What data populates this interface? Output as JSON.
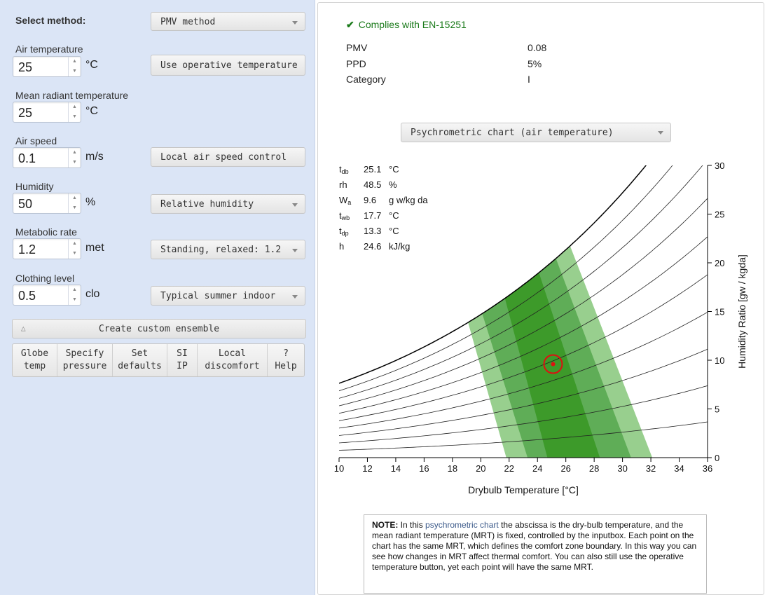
{
  "left": {
    "method_label": "Select method:",
    "method_value": "PMV method",
    "air_temp": {
      "label": "Air temperature",
      "value": "25",
      "unit": "°C",
      "button": "Use operative temperature"
    },
    "mrt": {
      "label": "Mean radiant temperature",
      "value": "25",
      "unit": "°C"
    },
    "air_speed": {
      "label": "Air speed",
      "value": "0.1",
      "unit": "m/s",
      "button": "Local air speed control"
    },
    "humidity": {
      "label": "Humidity",
      "value": "50",
      "unit": "%",
      "select": "Relative humidity"
    },
    "met": {
      "label": "Metabolic rate",
      "value": "1.2",
      "unit": "met",
      "select": "Standing, relaxed: 1.2"
    },
    "clo": {
      "label": "Clothing level",
      "value": "0.5",
      "unit": "clo",
      "select": "Typical summer indoor"
    },
    "custom_ensemble": "Create custom ensemble",
    "tools": [
      {
        "l1": "Globe",
        "l2": "temp"
      },
      {
        "l1": "Specify",
        "l2": "pressure"
      },
      {
        "l1": "Set",
        "l2": "defaults"
      },
      {
        "l1": "SI",
        "l2": "IP"
      },
      {
        "l1": "Local",
        "l2": "discomfort"
      },
      {
        "l1": "?",
        "l2": "Help"
      }
    ]
  },
  "results": {
    "complies": "Complies with EN-15251",
    "rows": [
      {
        "label": "PMV",
        "value": "0.08"
      },
      {
        "label": "PPD",
        "value": "5%"
      },
      {
        "label": "Category",
        "value": "I"
      }
    ]
  },
  "chart_select": "Psychrometric chart (air temperature)",
  "readout": [
    {
      "sym": "t",
      "sub": "db",
      "value": "25.1",
      "unit": "°C"
    },
    {
      "sym": "rh",
      "sub": "",
      "value": "48.5",
      "unit": "%"
    },
    {
      "sym": "W",
      "sub": "a",
      "value": "9.6",
      "unit": "g w/kg da"
    },
    {
      "sym": "t",
      "sub": "wb",
      "value": "17.7",
      "unit": "°C"
    },
    {
      "sym": "t",
      "sub": "dp",
      "value": "13.3",
      "unit": "°C"
    },
    {
      "sym": "h",
      "sub": "",
      "value": "24.6",
      "unit": "kJ/kg"
    }
  ],
  "chart_data": {
    "type": "scatter",
    "xlabel": "Drybulb Temperature [°C]",
    "ylabel": "Humidity Ratio [gw / kgda]",
    "xlim": [
      10,
      36
    ],
    "ylim": [
      0,
      30
    ],
    "x_ticks": [
      10,
      12,
      14,
      16,
      18,
      20,
      22,
      24,
      26,
      28,
      30,
      32,
      34,
      36
    ],
    "y_ticks": [
      0,
      5,
      10,
      15,
      20,
      25,
      30
    ],
    "rh_curves": [
      10,
      20,
      30,
      40,
      50,
      60,
      70,
      80,
      90,
      100
    ],
    "comfort_zones": [
      {
        "color": "#98cf8e",
        "bottom": [
          21.8,
          32.1
        ],
        "top": [
          19.1,
          26.3
        ]
      },
      {
        "color": "#5fad57",
        "bottom": [
          23.3,
          30.6
        ],
        "top": [
          20.1,
          25.3
        ]
      },
      {
        "color": "#3d9a2a",
        "bottom": [
          24.7,
          28.4
        ],
        "top": [
          21.7,
          24.1
        ]
      }
    ],
    "current_point": {
      "tdb": 25.1,
      "w": 9.6
    },
    "point_color": "#dd1111"
  },
  "note": {
    "lead": "NOTE:",
    "t1": " In this ",
    "link": "psychrometric chart",
    "t2": " the abscissa is the dry-bulb temperature, and the mean radiant temperature (MRT) is fixed, controlled by the inputbox. Each point on the chart has the same MRT, which defines the comfort zone boundary. In this way you can see how changes in MRT affect thermal comfort. You can also still use the operative temperature button, yet each point will have the same MRT."
  }
}
